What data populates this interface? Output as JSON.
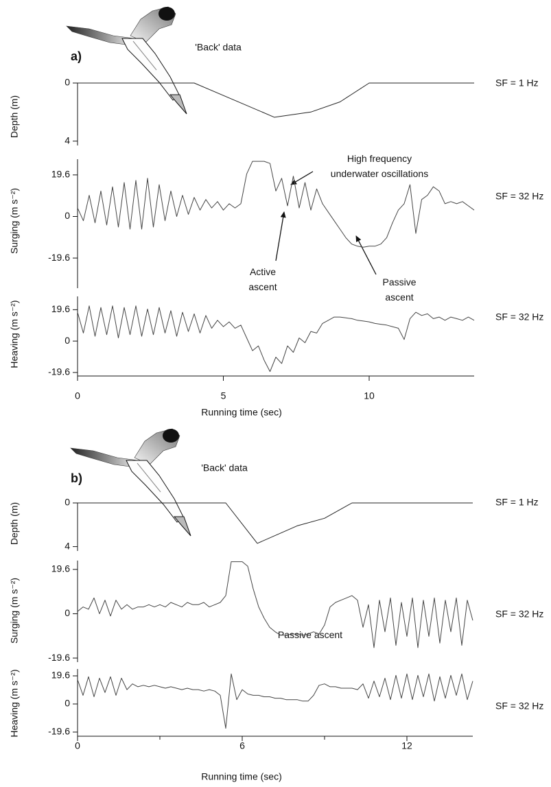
{
  "chart_data": [
    {
      "type": "line",
      "panel_label": "a)",
      "caption": "'Back' data",
      "y_label": "Depth (m)",
      "ylim": [
        0,
        4.3
      ],
      "y_inverted": true,
      "yticks": [
        0,
        4
      ],
      "xlim": [
        0,
        13.6
      ],
      "x": [
        0,
        4,
        6.75,
        8,
        9,
        10,
        13.6
      ],
      "series": [
        {
          "color": "#222222",
          "values": [
            0,
            0,
            2.36,
            2,
            1.3,
            0,
            0
          ]
        }
      ],
      "annotation": "SF = 1 Hz"
    },
    {
      "type": "line",
      "y_label": "Surging (m s⁻²)",
      "ylim": [
        -33.8,
        27
      ],
      "yticks": [
        19.6,
        0,
        -19.6
      ],
      "xlim": [
        0,
        13.6
      ],
      "x": [
        0,
        0.2,
        0.4,
        0.6,
        0.8,
        1,
        1.2,
        1.4,
        1.6,
        1.8,
        2,
        2.2,
        2.4,
        2.6,
        2.8,
        3,
        3.2,
        3.4,
        3.6,
        3.8,
        4,
        4.2,
        4.4,
        4.6,
        4.8,
        5,
        5.2,
        5.4,
        5.6,
        5.8,
        6,
        6.2,
        6.4,
        6.6,
        6.8,
        7,
        7.2,
        7.4,
        7.6,
        7.8,
        8,
        8.2,
        8.4,
        8.6,
        8.8,
        9,
        9.2,
        9.4,
        9.6,
        9.8,
        10,
        10.2,
        10.4,
        10.6,
        10.8,
        11,
        11.2,
        11.4,
        11.6,
        11.8,
        12,
        12.2,
        12.4,
        12.6,
        12.8,
        13,
        13.2,
        13.4,
        13.6
      ],
      "series": [
        {
          "color": "#444444",
          "values": [
            4,
            -2,
            10,
            -3,
            12,
            -4,
            14,
            -5,
            16,
            -6,
            17,
            -6,
            18,
            -5,
            15,
            -2,
            12,
            0,
            10,
            1,
            9,
            3,
            8,
            4,
            7,
            3,
            6,
            4,
            6,
            20,
            26,
            26,
            26,
            25,
            12,
            18,
            5,
            19,
            4,
            16,
            3,
            13,
            6,
            2,
            -2,
            -6,
            -10,
            -13,
            -14,
            -14.5,
            -14,
            -14,
            -13,
            -10,
            -3,
            3,
            6,
            15,
            -8,
            8,
            10,
            14,
            12,
            6,
            7,
            6,
            7,
            5,
            3
          ]
        }
      ],
      "annotation": "SF = 32 Hz",
      "notes": [
        {
          "lines": [
            "High frequency",
            "underwater oscillations"
          ]
        },
        {
          "lines": [
            "Active",
            "ascent"
          ]
        },
        {
          "lines": [
            "Passive",
            "ascent"
          ]
        }
      ]
    },
    {
      "type": "line",
      "y_label": "Heaving (m s⁻²)",
      "ylim": [
        -21.8,
        27.9
      ],
      "yticks": [
        19.6,
        0,
        -19.6
      ],
      "xlim": [
        0,
        13.6
      ],
      "xticks": [
        0,
        5,
        10
      ],
      "x_label": "Running time (sec)",
      "x": [
        0,
        0.2,
        0.4,
        0.6,
        0.8,
        1,
        1.2,
        1.4,
        1.6,
        1.8,
        2,
        2.2,
        2.4,
        2.6,
        2.8,
        3,
        3.2,
        3.4,
        3.6,
        3.8,
        4,
        4.2,
        4.4,
        4.6,
        4.8,
        5,
        5.2,
        5.4,
        5.6,
        5.8,
        6,
        6.2,
        6.4,
        6.6,
        6.8,
        7,
        7.2,
        7.4,
        7.6,
        7.8,
        8,
        8.2,
        8.4,
        8.6,
        8.8,
        9,
        9.2,
        9.4,
        9.6,
        9.8,
        10,
        10.2,
        10.4,
        10.6,
        10.8,
        11,
        11.2,
        11.4,
        11.6,
        11.8,
        12,
        12.2,
        12.4,
        12.6,
        12.8,
        13,
        13.2,
        13.4,
        13.6
      ],
      "series": [
        {
          "color": "#444444",
          "values": [
            18,
            5,
            22,
            3,
            21,
            4,
            22,
            2,
            21,
            4,
            22,
            3,
            20,
            4,
            21,
            5,
            19,
            3,
            18,
            6,
            17,
            5,
            16,
            8,
            13,
            9,
            12,
            8,
            10,
            2,
            -6,
            -3,
            -12,
            -19,
            -10,
            -14,
            -3,
            -7,
            2,
            -1,
            6,
            5,
            11,
            13,
            15,
            15,
            14.5,
            14,
            13,
            12.5,
            12,
            11,
            10.5,
            10,
            9,
            8,
            1,
            14,
            18,
            16,
            17,
            14,
            15,
            13,
            15,
            14,
            13,
            15,
            13
          ]
        }
      ],
      "annotation": "SF = 32 Hz"
    },
    {
      "type": "line",
      "panel_label": "b)",
      "caption": "'Back' data",
      "y_label": "Depth (m)",
      "ylim": [
        0,
        4.4
      ],
      "y_inverted": true,
      "yticks": [
        0,
        4
      ],
      "xlim": [
        0,
        14.4
      ],
      "x": [
        0,
        5.4,
        6.55,
        8,
        9,
        10,
        14.4
      ],
      "series": [
        {
          "color": "#222222",
          "values": [
            0,
            0,
            3.7,
            2.1,
            1.4,
            0,
            0
          ]
        }
      ],
      "annotation": "SF = 1 Hz"
    },
    {
      "type": "line",
      "y_label": "Surging (m s⁻²)",
      "ylim": [
        -21.4,
        23.5
      ],
      "yticks": [
        19.6,
        0,
        -19.6
      ],
      "xlim": [
        0,
        14.4
      ],
      "x": [
        0,
        0.2,
        0.4,
        0.6,
        0.8,
        1,
        1.2,
        1.4,
        1.6,
        1.8,
        2,
        2.2,
        2.4,
        2.6,
        2.8,
        3,
        3.2,
        3.4,
        3.6,
        3.8,
        4,
        4.2,
        4.4,
        4.6,
        4.8,
        5,
        5.2,
        5.4,
        5.6,
        5.8,
        6,
        6.2,
        6.4,
        6.6,
        6.8,
        7,
        7.2,
        7.4,
        7.6,
        7.8,
        8,
        8.2,
        8.4,
        8.6,
        8.8,
        9,
        9.2,
        9.4,
        9.6,
        9.8,
        10,
        10.2,
        10.4,
        10.6,
        10.8,
        11,
        11.2,
        11.4,
        11.6,
        11.8,
        12,
        12.2,
        12.4,
        12.6,
        12.8,
        13,
        13.2,
        13.4,
        13.6,
        13.8,
        14,
        14.2,
        14.4
      ],
      "series": [
        {
          "color": "#444444",
          "values": [
            1,
            3,
            2,
            7,
            0,
            6,
            -1,
            6,
            2,
            4,
            2,
            3,
            3,
            4,
            3,
            4,
            3,
            5,
            4,
            3,
            5,
            4,
            4,
            5,
            3,
            4,
            5,
            8,
            23,
            23,
            23,
            21,
            11,
            3,
            -2,
            -6,
            -8,
            -9.5,
            -9.5,
            -9,
            -9,
            -9.5,
            -9,
            -8,
            -9,
            -5,
            3,
            5,
            6,
            7,
            8,
            6,
            -6,
            4,
            -15,
            6,
            -8,
            7,
            -14,
            5,
            -10,
            7,
            -15,
            6,
            -10,
            7,
            -13,
            6,
            -8,
            7,
            -14,
            6,
            -3
          ]
        }
      ],
      "annotation": "SF = 32 Hz",
      "notes": [
        {
          "lines": [
            "Passive ascent"
          ]
        }
      ]
    },
    {
      "type": "line",
      "y_label": "Heaving (m s⁻²)",
      "ylim": [
        -22.5,
        24.4
      ],
      "yticks": [
        19.6,
        0,
        -19.6
      ],
      "xlim": [
        0,
        14.4
      ],
      "xticks": [
        0,
        6,
        12
      ],
      "minor_xticks": [
        3,
        9
      ],
      "x_label": "Running time (sec)",
      "x": [
        0,
        0.2,
        0.4,
        0.6,
        0.8,
        1,
        1.2,
        1.4,
        1.6,
        1.8,
        2,
        2.2,
        2.4,
        2.6,
        2.8,
        3,
        3.2,
        3.4,
        3.6,
        3.8,
        4,
        4.2,
        4.4,
        4.6,
        4.8,
        5,
        5.2,
        5.4,
        5.6,
        5.8,
        6,
        6.2,
        6.4,
        6.6,
        6.8,
        7,
        7.2,
        7.4,
        7.6,
        7.8,
        8,
        8.2,
        8.4,
        8.6,
        8.8,
        9,
        9.2,
        9.4,
        9.6,
        9.8,
        10,
        10.2,
        10.4,
        10.6,
        10.8,
        11,
        11.2,
        11.4,
        11.6,
        11.8,
        12,
        12.2,
        12.4,
        12.6,
        12.8,
        13,
        13.2,
        13.4,
        13.6,
        13.8,
        14,
        14.2,
        14.4
      ],
      "series": [
        {
          "color": "#444444",
          "values": [
            17,
            6,
            19,
            5,
            18,
            8,
            19,
            6,
            18,
            10,
            14,
            12,
            13,
            12,
            13,
            12,
            11,
            12,
            11,
            10,
            11,
            10,
            10,
            9,
            10,
            9,
            6,
            -17,
            21,
            3,
            10,
            7,
            6,
            6,
            5,
            5,
            4,
            4,
            3,
            3,
            3,
            2,
            2,
            6,
            13,
            14,
            12,
            12,
            11,
            11,
            11,
            10,
            14,
            4,
            16,
            5,
            18,
            3,
            20,
            4,
            21,
            3,
            20,
            5,
            21,
            2,
            19,
            4,
            20,
            6,
            21,
            3,
            16
          ]
        }
      ],
      "annotation": "SF = 32 Hz"
    }
  ]
}
